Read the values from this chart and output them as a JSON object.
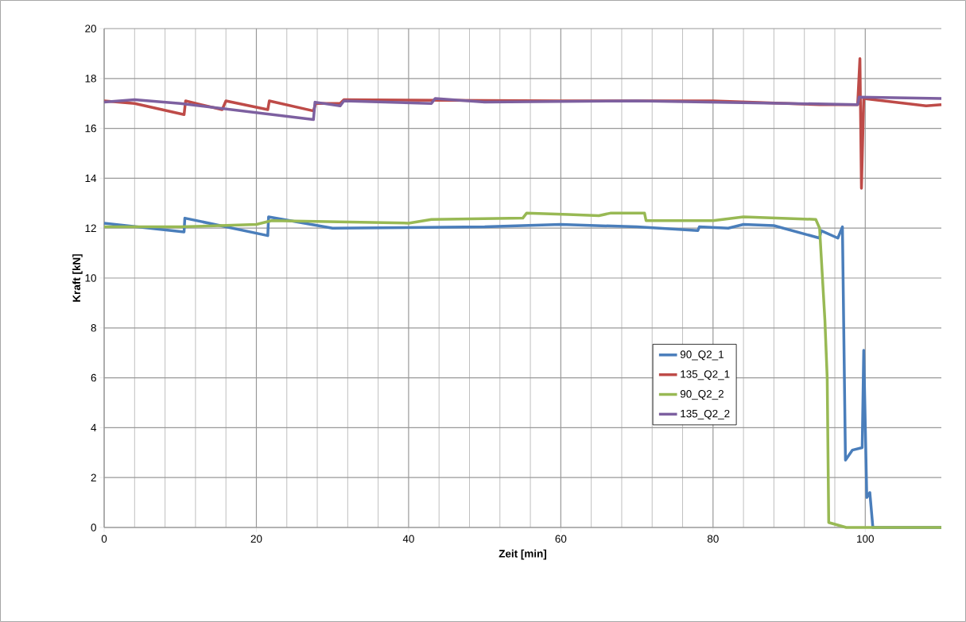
{
  "chart_data": {
    "type": "line",
    "xlabel": "Zeit [min]",
    "ylabel": "Kraft [kN]",
    "xlim": [
      0,
      110
    ],
    "ylim": [
      0,
      20
    ],
    "xticks": [
      0,
      20,
      40,
      60,
      80,
      100
    ],
    "yticks": [
      0,
      2,
      4,
      6,
      8,
      10,
      12,
      14,
      16,
      18,
      20
    ],
    "grid": true,
    "legend": "right",
    "line_style": "solid",
    "marker": "none",
    "series": [
      {
        "name": "90_Q2_1",
        "color": "#4a7ebb",
        "x": [
          0,
          10.5,
          10.6,
          21.5,
          21.6,
          30,
          50,
          60,
          70,
          78,
          78.2,
          82,
          84,
          88,
          94,
          94.2,
          96.4,
          97,
          97.4,
          98.3,
          99.6,
          99.8,
          100.2,
          100.6,
          101,
          110
        ],
        "values": [
          12.2,
          11.85,
          12.4,
          11.7,
          12.45,
          12.0,
          12.05,
          12.15,
          12.05,
          11.9,
          12.05,
          12.0,
          12.15,
          12.1,
          11.6,
          11.9,
          11.6,
          12.05,
          2.7,
          3.1,
          3.2,
          7.1,
          1.2,
          1.4,
          0,
          0
        ]
      },
      {
        "name": "135_Q2_1",
        "color": "#be4b48",
        "x": [
          0,
          4,
          10.5,
          10.7,
          15.5,
          16,
          21.5,
          21.7,
          27.5,
          27.8,
          31,
          31.5,
          60,
          80,
          94,
          99,
          99.3,
          99.5,
          99.8,
          108,
          110
        ],
        "values": [
          17.1,
          17.0,
          16.55,
          17.1,
          16.75,
          17.1,
          16.75,
          17.1,
          16.7,
          17.0,
          17.0,
          17.15,
          17.1,
          17.1,
          16.95,
          16.95,
          18.8,
          13.6,
          17.2,
          16.9,
          16.95
        ]
      },
      {
        "name": "90_Q2_2",
        "color": "#98b954",
        "x": [
          0,
          10,
          20,
          22,
          40,
          43,
          55,
          55.5,
          61,
          65,
          66.5,
          71,
          71.2,
          80,
          84,
          93.5,
          94,
          94.7,
          95,
          95.2,
          97.5,
          110
        ],
        "values": [
          12.05,
          12.05,
          12.15,
          12.3,
          12.2,
          12.35,
          12.4,
          12.6,
          12.55,
          12.5,
          12.6,
          12.6,
          12.3,
          12.3,
          12.45,
          12.35,
          12.0,
          8.3,
          6.0,
          0.2,
          0,
          0
        ]
      },
      {
        "name": "135_Q2_2",
        "color": "#7d60a0",
        "x": [
          0,
          4,
          10,
          27.5,
          27.7,
          31,
          31.5,
          43,
          43.5,
          50,
          70,
          90,
          99,
          99.2,
          110
        ],
        "values": [
          17.05,
          17.15,
          17.0,
          16.35,
          17.05,
          16.9,
          17.1,
          17.0,
          17.2,
          17.05,
          17.1,
          17.0,
          16.95,
          17.25,
          17.2
        ]
      }
    ]
  }
}
